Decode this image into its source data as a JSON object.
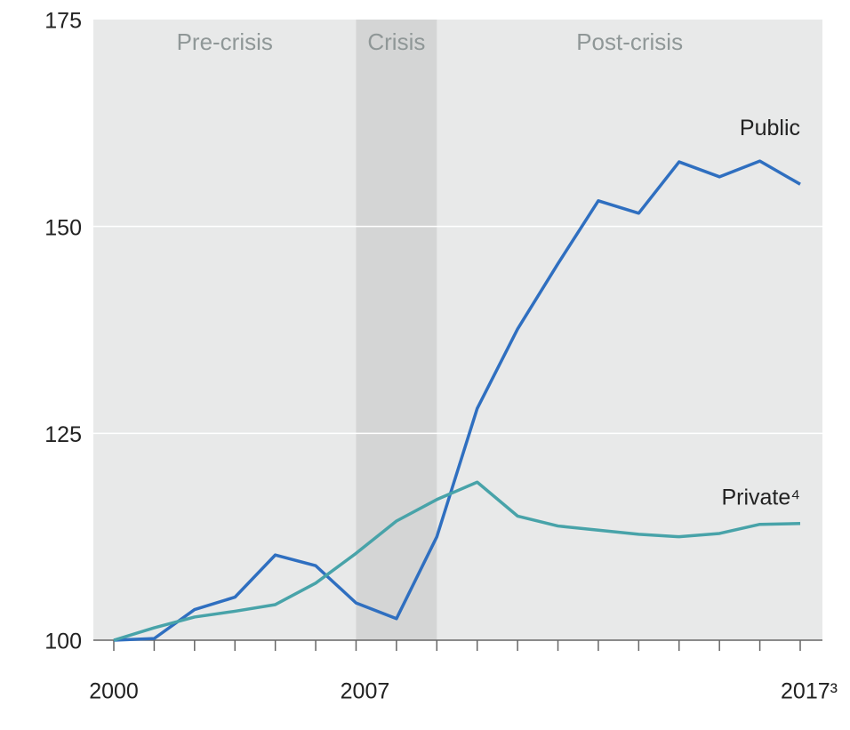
{
  "chart_data": {
    "type": "line",
    "categories": [
      "2000",
      null,
      null,
      null,
      null,
      null,
      "2007",
      null,
      null,
      null,
      null,
      null,
      null,
      null,
      null,
      null,
      null,
      "2017³"
    ],
    "series": [
      {
        "name": "Public",
        "color": "#2f6fc0",
        "values": [
          100,
          100.2,
          103.7,
          105.2,
          110.3,
          109,
          104.5,
          102.6,
          112.5,
          128,
          137.6,
          145.5,
          153.1,
          151.6,
          157.8,
          156,
          157.9,
          155.1
        ]
      },
      {
        "name": "Private⁴",
        "color": "#48a3a9",
        "values": [
          100,
          101.5,
          102.8,
          103.5,
          104.3,
          106.9,
          110.5,
          114.4,
          117,
          119.1,
          115,
          113.8,
          113.3,
          112.8,
          112.5,
          112.9,
          114,
          114.1
        ]
      }
    ],
    "regions": [
      {
        "label": "Pre-crisis",
        "start": 0,
        "end": 6
      },
      {
        "label": "Crisis",
        "start": 6,
        "end": 8,
        "color": "#d4d5d5"
      },
      {
        "label": "Post-crisis",
        "start": 8,
        "end": 17
      }
    ],
    "ylim": [
      100,
      175
    ],
    "yticks": [
      100,
      125,
      150,
      175
    ],
    "grid": true
  }
}
